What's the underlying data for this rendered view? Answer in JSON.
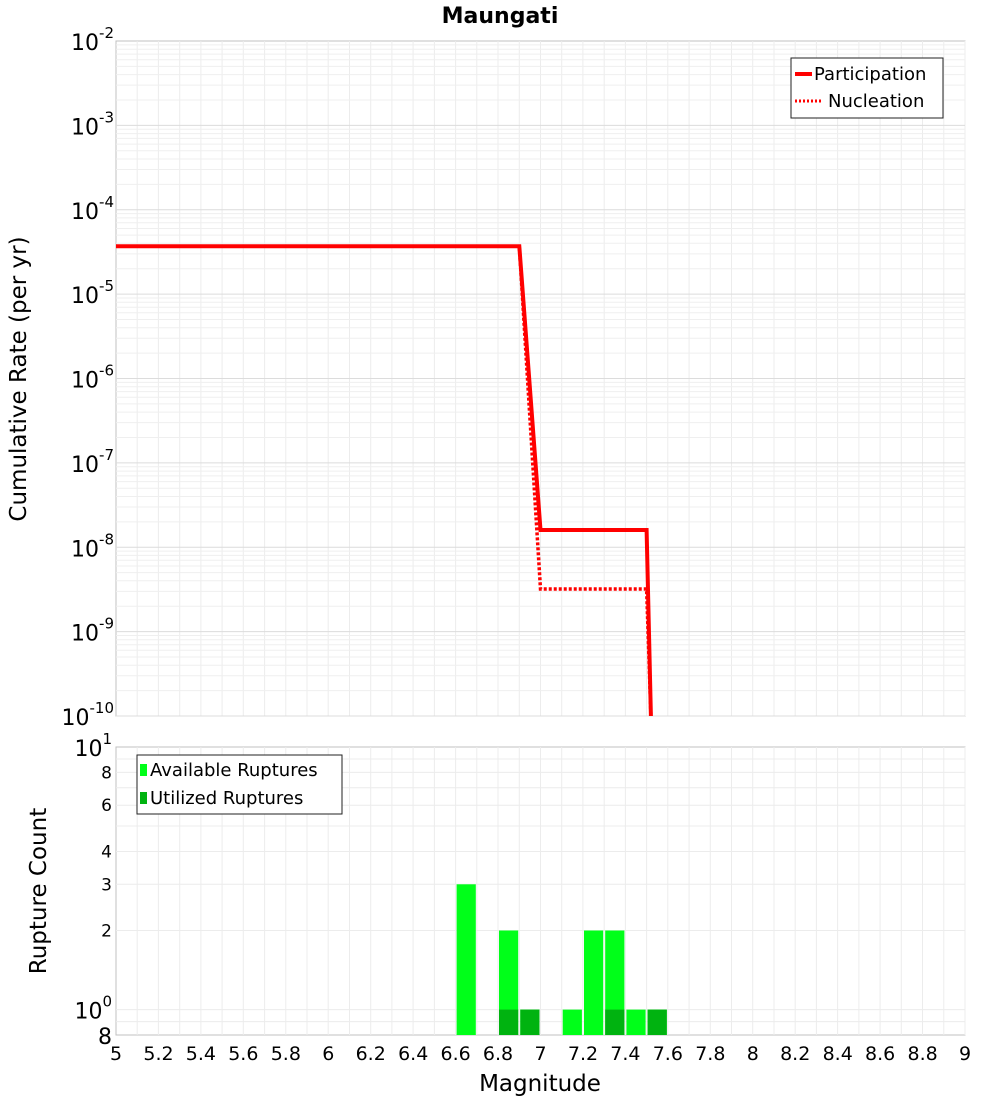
{
  "chart_data": [
    {
      "type": "line",
      "title": "Maungati",
      "xlabel": "",
      "ylabel": "Cumulative Rate (per yr)",
      "yscale": "log",
      "xlim": [
        5,
        9
      ],
      "ylim": [
        1e-10,
        0.01
      ],
      "y_ticks": [
        {
          "mantissa": "10",
          "exp": "-2",
          "value": 0.01
        },
        {
          "mantissa": "10",
          "exp": "-3",
          "value": 0.001
        },
        {
          "mantissa": "10",
          "exp": "-4",
          "value": 0.0001
        },
        {
          "mantissa": "10",
          "exp": "-5",
          "value": 1e-05
        },
        {
          "mantissa": "10",
          "exp": "-6",
          "value": 1e-06
        },
        {
          "mantissa": "10",
          "exp": "-7",
          "value": 1e-07
        },
        {
          "mantissa": "10",
          "exp": "-8",
          "value": 1e-08
        },
        {
          "mantissa": "10",
          "exp": "-9",
          "value": 1e-09
        },
        {
          "mantissa": "10",
          "exp": "-10",
          "value": 1e-10
        }
      ],
      "grid": true,
      "legend_position": "top-right",
      "series": [
        {
          "name": "Participation",
          "style": "solid",
          "color": "#ff0000",
          "x": [
            5.0,
            6.9,
            7.0,
            7.5,
            7.52
          ],
          "y": [
            3.7e-05,
            3.7e-05,
            1.6e-08,
            1.6e-08,
            1e-10
          ]
        },
        {
          "name": "Nucleation",
          "style": "dotted",
          "color": "#ff0000",
          "x": [
            5.0,
            6.9,
            7.0,
            7.5,
            7.52
          ],
          "y": [
            3.7e-05,
            3.7e-05,
            3.2e-09,
            3.2e-09,
            1e-10
          ]
        }
      ]
    },
    {
      "type": "bar",
      "xlabel": "Magnitude",
      "ylabel": "Rupture Count",
      "yscale": "log",
      "xlim": [
        5,
        9
      ],
      "ylim": [
        0.8,
        10
      ],
      "x_ticks": [
        "5",
        "5.2",
        "5.4",
        "5.6",
        "5.8",
        "6",
        "6.2",
        "6.4",
        "6.6",
        "6.8",
        "7",
        "7.2",
        "7.4",
        "7.6",
        "7.8",
        "8",
        "8.2",
        "8.4",
        "8.6",
        "8.8",
        "9"
      ],
      "y_ticks": [
        {
          "label": "10",
          "exp": "1",
          "value": 10,
          "size": "large"
        },
        {
          "label": "8",
          "exp": "",
          "value": 8,
          "size": "small"
        },
        {
          "label": "6",
          "exp": "",
          "value": 6,
          "size": "small"
        },
        {
          "label": "4",
          "exp": "",
          "value": 4,
          "size": "small"
        },
        {
          "label": "3",
          "exp": "",
          "value": 3,
          "size": "small"
        },
        {
          "label": "2",
          "exp": "",
          "value": 2,
          "size": "small"
        },
        {
          "label": "10",
          "exp": "0",
          "value": 1,
          "size": "large"
        },
        {
          "label": "8",
          "exp": "",
          "value": 0.8,
          "size": "large"
        }
      ],
      "grid": true,
      "legend_position": "top-left",
      "bin_width": 0.1,
      "series": [
        {
          "name": "Available Ruptures",
          "color": "#00ff19",
          "centers": [
            6.65,
            6.85,
            6.95,
            7.15,
            7.25,
            7.35,
            7.45,
            7.55
          ],
          "values": [
            3,
            2,
            1,
            1,
            2,
            2,
            1,
            1
          ]
        },
        {
          "name": "Utilized Ruptures",
          "color": "#00b310",
          "centers": [
            6.85,
            6.95,
            7.35,
            7.55
          ],
          "values": [
            1,
            1,
            1,
            1
          ]
        }
      ]
    }
  ]
}
